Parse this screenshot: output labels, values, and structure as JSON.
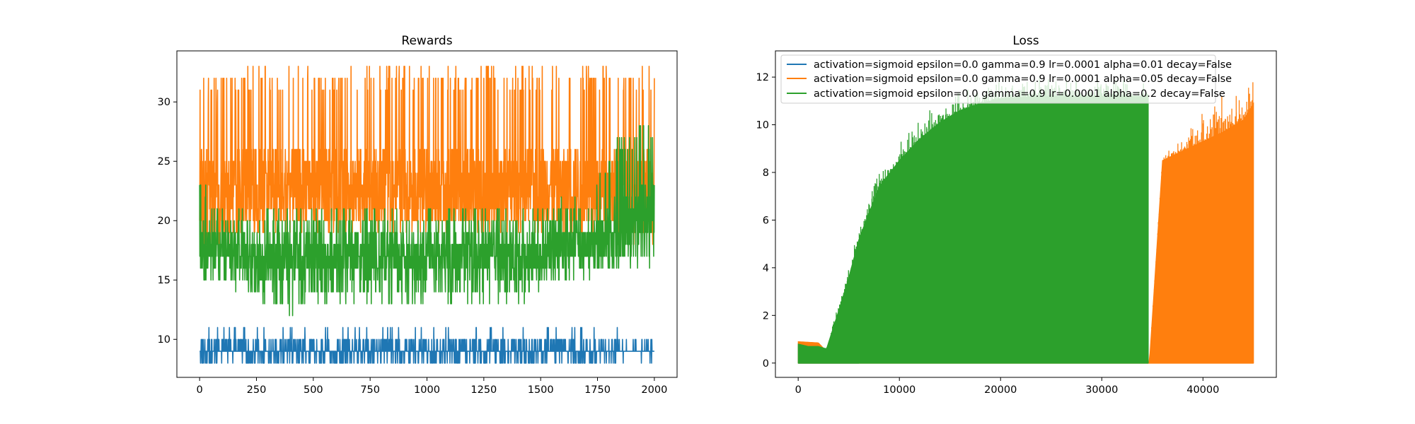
{
  "chart_data": [
    {
      "type": "line",
      "title": "Rewards",
      "xlabel": "",
      "ylabel": "",
      "xlim": [
        -100,
        2100
      ],
      "ylim": [
        6.8,
        34.3
      ],
      "xticks": [
        0,
        250,
        500,
        750,
        1000,
        1250,
        1500,
        1750,
        2000
      ],
      "xtick_labels": [
        "0",
        "250",
        "500",
        "750",
        "1000",
        "1250",
        "1500",
        "1750",
        "2000"
      ],
      "yticks": [
        10,
        15,
        20,
        25,
        30
      ],
      "ytick_labels": [
        "10",
        "15",
        "20",
        "25",
        "30"
      ],
      "grid": false,
      "legend": "none",
      "series": [
        {
          "color": "#1f77b4",
          "x_range": [
            0,
            2000
          ],
          "typical_range": [
            8,
            10
          ],
          "extremes": [
            8,
            11
          ],
          "x": [
            0,
            250,
            500,
            750,
            1000,
            1250,
            1500,
            1750,
            2000
          ],
          "low": [
            8,
            8,
            8,
            8,
            8,
            8,
            8,
            8,
            8
          ],
          "mid": [
            9,
            9,
            9,
            9,
            9,
            9,
            9,
            9,
            9
          ],
          "high": [
            11,
            11,
            11,
            11,
            11,
            11,
            11,
            11,
            10
          ]
        },
        {
          "color": "#ff7f0e",
          "x_range": [
            0,
            2000
          ],
          "typical_range": [
            20,
            26
          ],
          "extremes": [
            17,
            33
          ],
          "x": [
            0,
            250,
            500,
            750,
            1000,
            1250,
            1500,
            1750,
            2000
          ],
          "low": [
            17,
            19,
            19,
            19,
            19,
            19,
            19,
            19,
            18
          ],
          "mid": [
            23,
            23,
            23,
            23,
            23,
            23,
            23,
            23,
            23
          ],
          "high": [
            32,
            33,
            33,
            33,
            33,
            33,
            33,
            33,
            33
          ]
        },
        {
          "color": "#2ca02c",
          "x_range": [
            0,
            2000
          ],
          "typical_range": [
            15,
            19
          ],
          "extremes": [
            12,
            28
          ],
          "x": [
            0,
            100,
            200,
            300,
            400,
            500,
            600,
            700,
            800,
            900,
            1000,
            1100,
            1200,
            1300,
            1400,
            1500,
            1600,
            1700,
            1800,
            1900,
            2000
          ],
          "low": [
            15,
            15,
            14,
            13,
            12,
            13,
            13,
            13,
            13,
            13,
            13,
            13,
            13,
            13,
            13,
            14,
            15,
            15,
            16,
            16,
            16
          ],
          "mid": [
            18,
            18,
            17,
            17,
            17,
            17,
            17,
            17,
            17,
            17,
            17,
            17,
            17,
            17,
            17,
            17,
            18,
            18,
            19,
            20,
            21
          ],
          "high": [
            24,
            21,
            21,
            21,
            21,
            21,
            21,
            21,
            21,
            21,
            21,
            21,
            21,
            21,
            21,
            21,
            22,
            22,
            26,
            28,
            28
          ]
        }
      ]
    },
    {
      "type": "line",
      "title": "Loss",
      "xlabel": "",
      "ylabel": "",
      "xlim": [
        -2250,
        47250
      ],
      "ylim": [
        -0.6,
        13.1
      ],
      "xticks": [
        0,
        10000,
        20000,
        30000,
        40000
      ],
      "xtick_labels": [
        "0",
        "10000",
        "20000",
        "30000",
        "40000"
      ],
      "yticks": [
        0,
        2,
        4,
        6,
        8,
        10,
        12
      ],
      "ytick_labels": [
        "0",
        "2",
        "4",
        "6",
        "8",
        "10",
        "12"
      ],
      "grid": false,
      "legend": "upper-left",
      "series": [
        {
          "name": "activation=sigmoid epsilon=0.0 gamma=0.9 lr=0.0001 alpha=0.01 decay=False",
          "color": "#1f77b4",
          "x": [
            0,
            1000,
            2000,
            3000,
            4000,
            5000,
            6000
          ],
          "low": [
            0,
            0,
            0,
            0,
            0,
            0,
            0
          ],
          "high": [
            0.7,
            0.4,
            0.2,
            0.1,
            0.05,
            0.02,
            0
          ]
        },
        {
          "name": "activation=sigmoid epsilon=0.0 gamma=0.9 lr=0.0001 alpha=0.05 decay=False",
          "color": "#ff7f0e",
          "x": [
            0,
            2000,
            3000,
            4000,
            5000,
            6000,
            34700,
            36000,
            38000,
            40000,
            42000,
            44000,
            45000
          ],
          "low": [
            0,
            0,
            0,
            0,
            0,
            0,
            0,
            0,
            0,
            0,
            0,
            0,
            0
          ],
          "high": [
            0.9,
            0.85,
            0.4,
            0.3,
            0.2,
            0.1,
            0,
            8.8,
            9.5,
            10.5,
            11.3,
            12,
            12.4
          ],
          "fill_top": [
            0.9,
            0.85,
            0.4,
            0.3,
            0.2,
            0.1,
            0,
            8.5,
            8.9,
            9.3,
            9.7,
            10.2,
            10.9
          ]
        },
        {
          "name": "activation=sigmoid epsilon=0.0 gamma=0.9 lr=0.0001 alpha=0.2 decay=False",
          "color": "#2ca02c",
          "x": [
            0,
            1000,
            2000,
            2800,
            4000,
            5000,
            6000,
            8000,
            10000,
            12000,
            14000,
            16000,
            18000,
            20000,
            24000,
            28000,
            32000,
            34600
          ],
          "low": [
            0,
            0,
            0,
            0,
            0,
            0,
            0,
            0,
            0,
            0,
            0,
            0,
            0,
            0,
            0,
            0,
            0,
            0
          ],
          "high": [
            0.8,
            0.7,
            0.7,
            0.6,
            2.2,
            3.6,
            5.2,
            7.4,
            8.5,
            9.4,
            10.1,
            10.6,
            10.9,
            11.1,
            11.2,
            11.2,
            11.2,
            11.2
          ],
          "spike_top": [
            0.8,
            0.7,
            0.7,
            0.6,
            2.5,
            4.0,
            5.7,
            8.0,
            9.3,
            10.3,
            11.0,
            11.4,
            11.6,
            11.8,
            12.0,
            11.9,
            11.9,
            11.7
          ]
        }
      ]
    }
  ]
}
